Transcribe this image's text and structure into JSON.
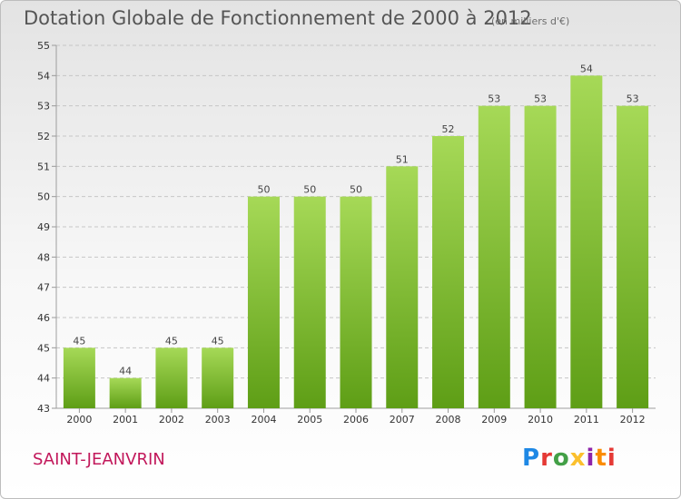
{
  "title": "Dotation Globale de Fonctionnement de 2000 à 2012",
  "subtitle": "(en milliers d'€)",
  "commune": "SAINT-JEANVRIN",
  "logo": {
    "text": "Proxiti",
    "letters": [
      "P",
      "r",
      "o",
      "x",
      "i",
      "t",
      "i"
    ],
    "colors": [
      "#1e88e5",
      "#e53935",
      "#43a047",
      "#fbc02d",
      "#8e24aa",
      "#fb8c00",
      "#e53935"
    ]
  },
  "colors": {
    "bar_top": "#a6d957",
    "bar_bottom": "#5e9e16",
    "grid": "#c6c6c6",
    "commune": "#c2185b"
  },
  "chart_data": {
    "type": "bar",
    "title": "Dotation Globale de Fonctionnement de 2000 à 2012",
    "subtitle": "(en milliers d'€)",
    "categories": [
      "2000",
      "2001",
      "2002",
      "2003",
      "2004",
      "2005",
      "2006",
      "2007",
      "2008",
      "2009",
      "2010",
      "2011",
      "2012"
    ],
    "values": [
      45,
      44,
      45,
      45,
      50,
      50,
      50,
      51,
      52,
      53,
      53,
      54,
      53
    ],
    "ylim": [
      43,
      55
    ],
    "yticks": [
      43,
      44,
      45,
      46,
      47,
      48,
      49,
      50,
      51,
      52,
      53,
      54,
      55
    ],
    "grid": "horizontal dashed",
    "data_labels": true,
    "legend": "none"
  }
}
